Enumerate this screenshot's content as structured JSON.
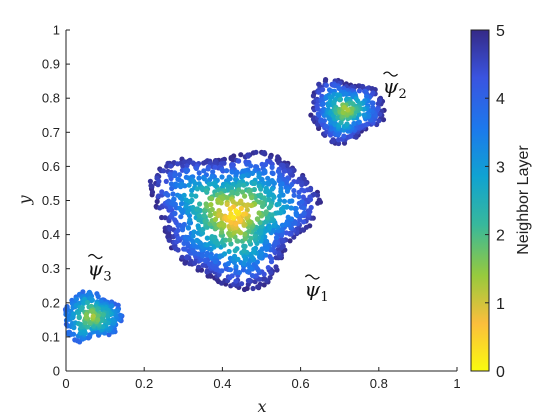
{
  "chart_data": {
    "type": "scatter",
    "title": "",
    "xlabel": "x",
    "ylabel": "y",
    "xlim": [
      0,
      1
    ],
    "ylim": [
      0,
      1
    ],
    "xticks": [
      "0",
      "0.2",
      "0.4",
      "0.6",
      "0.8",
      "1"
    ],
    "yticks": [
      "0",
      "0.1",
      "0.2",
      "0.3",
      "0.4",
      "0.5",
      "0.6",
      "0.7",
      "0.8",
      "0.9",
      "1"
    ],
    "grid": false,
    "colorbar": {
      "label": "Neighbor Layer",
      "range": [
        0,
        5
      ],
      "ticks": [
        "0",
        "1",
        "2",
        "3",
        "4",
        "5"
      ],
      "colormap": "parula",
      "stops": [
        "#f9fb0e",
        "#fbbe3c",
        "#97ca3d",
        "#37b89c",
        "#10a3d1",
        "#1c79ec",
        "#3a54e0",
        "#352a87"
      ]
    },
    "clusters": [
      {
        "annotation": "ψ",
        "subscript": "1",
        "center": [
          0.43,
          0.46
        ],
        "radius": 0.205,
        "points": 1150,
        "layer_range": [
          0,
          5
        ],
        "annotation_at": [
          0.63,
          0.22
        ]
      },
      {
        "annotation": "ψ",
        "subscript": "2",
        "center": [
          0.715,
          0.765
        ],
        "radius": 0.095,
        "points": 380,
        "layer_range": [
          1,
          5
        ],
        "annotation_at": [
          0.83,
          0.815
        ]
      },
      {
        "annotation": "ψ",
        "subscript": "3",
        "center": [
          0.065,
          0.16
        ],
        "radius": 0.075,
        "points": 260,
        "layer_range": [
          1,
          4
        ],
        "annotation_at": [
          0.075,
          0.28
        ]
      }
    ]
  }
}
